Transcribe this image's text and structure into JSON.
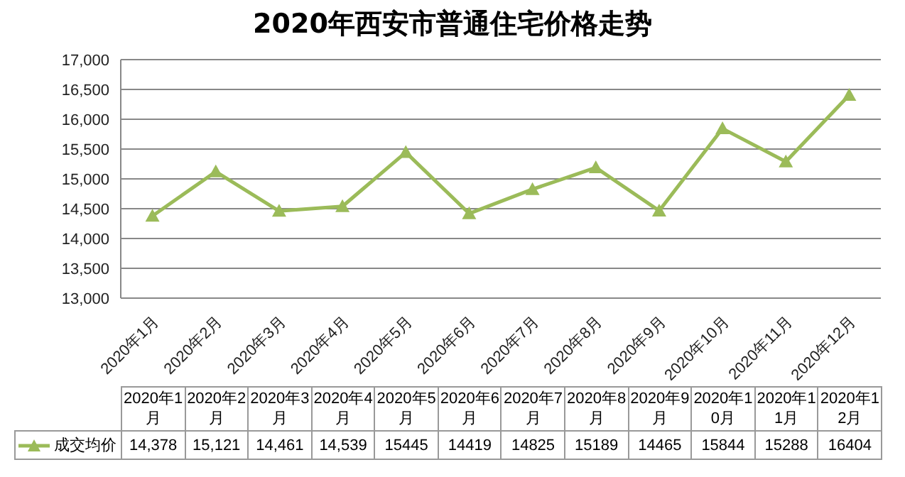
{
  "chart_data": {
    "type": "line",
    "title": "2020年西安市普通住宅价格走势",
    "categories": [
      "2020年1月",
      "2020年2月",
      "2020年3月",
      "2020年4月",
      "2020年5月",
      "2020年6月",
      "2020年7月",
      "2020年8月",
      "2020年9月",
      "2020年10月",
      "2020年11月",
      "2020年12月"
    ],
    "series": [
      {
        "name": "成交均价",
        "color": "#9bbb59",
        "values": [
          14378,
          15121,
          14461,
          14539,
          15445,
          14419,
          14825,
          15189,
          14465,
          15844,
          15288,
          16404
        ],
        "value_labels": [
          "14,378",
          "15,121",
          "14,461",
          "14,539",
          "15445",
          "14419",
          "14825",
          "15189",
          "14465",
          "15844",
          "15288",
          "16404"
        ]
      }
    ],
    "ylim": [
      13000,
      17000
    ],
    "yticks": [
      {
        "value": 13000,
        "label": "13,000"
      },
      {
        "value": 13500,
        "label": "13,500"
      },
      {
        "value": 14000,
        "label": "14,000"
      },
      {
        "value": 14500,
        "label": "14,500"
      },
      {
        "value": 15000,
        "label": "15,000"
      },
      {
        "value": 15500,
        "label": "15,500"
      },
      {
        "value": 16000,
        "label": "16,000"
      },
      {
        "value": 16500,
        "label": "16,500"
      },
      {
        "value": 17000,
        "label": "17,000"
      }
    ],
    "grid": "y",
    "legend": "bottom",
    "marker": "triangle",
    "line_style": "solid"
  }
}
